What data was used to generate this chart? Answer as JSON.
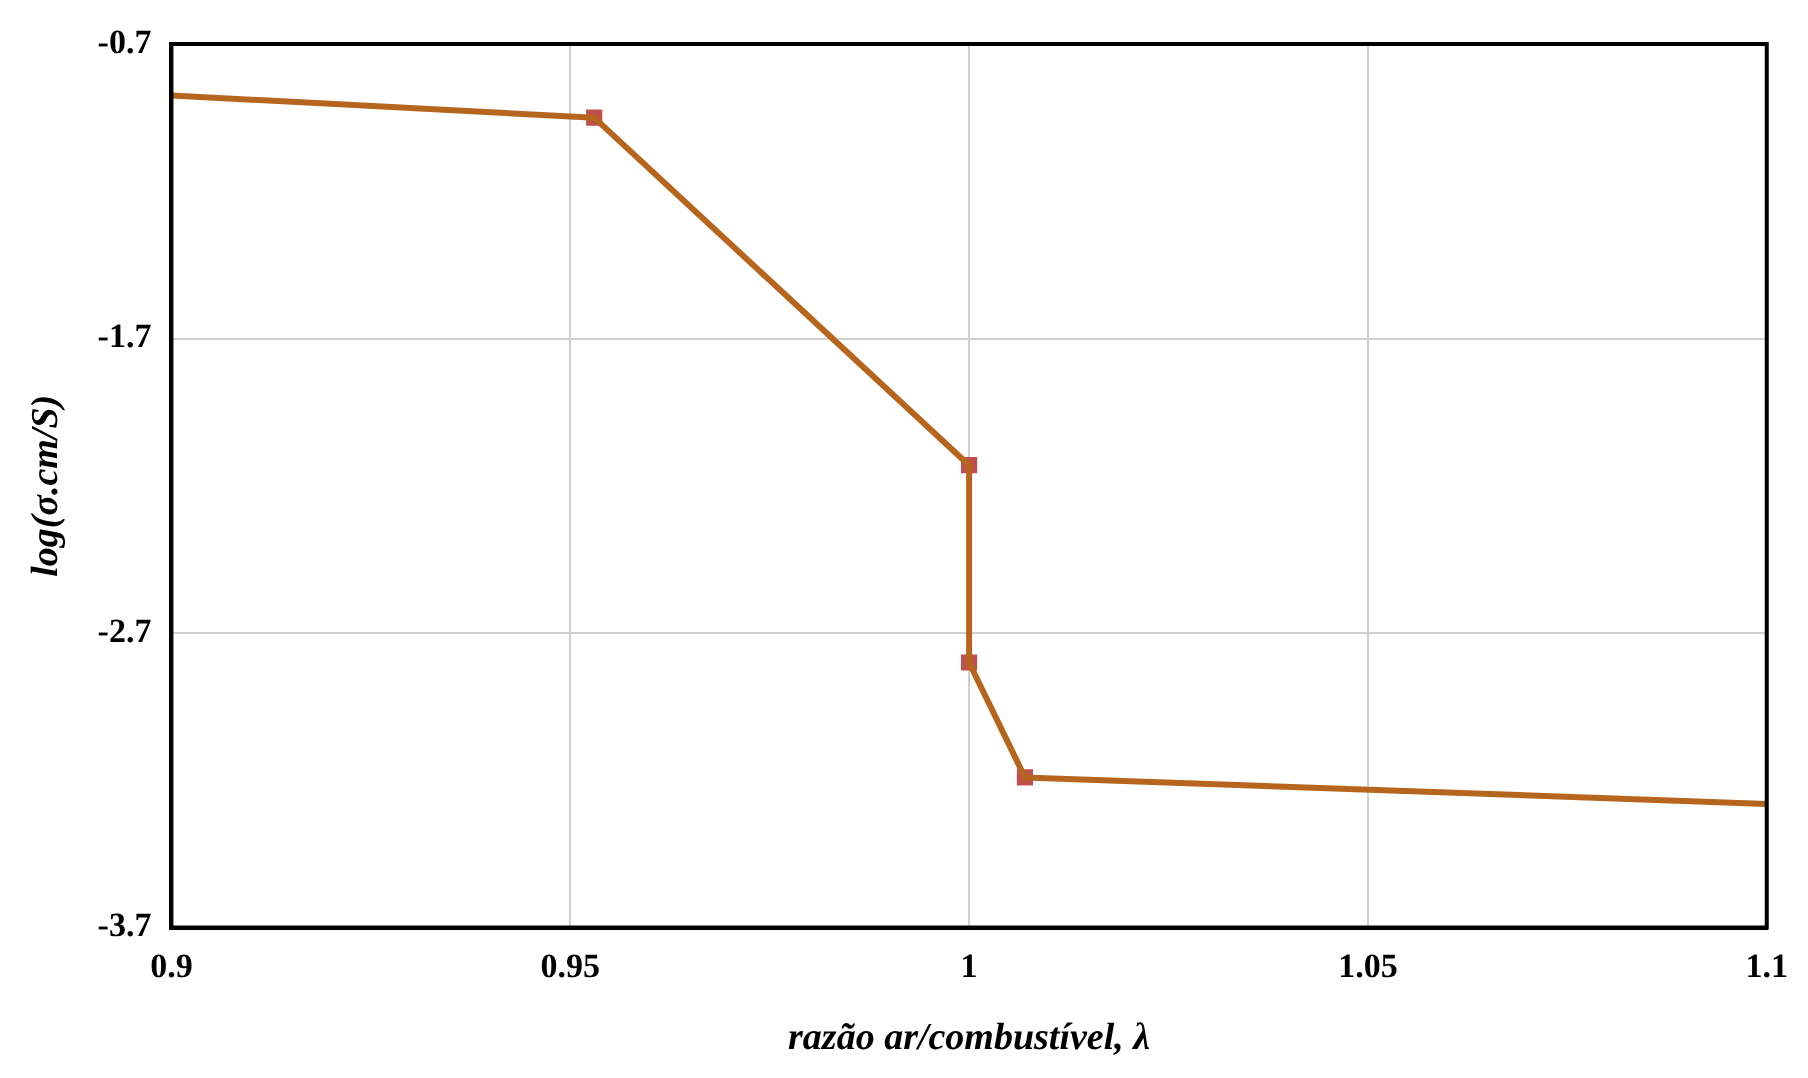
{
  "chart_data": {
    "type": "line",
    "xlabel": "razão ar/combustível, λ",
    "ylabel": "log(σ.cm/S)",
    "xlim": [
      0.9,
      1.1
    ],
    "xticks": [
      0.9,
      0.95,
      1,
      1.05,
      1.1
    ],
    "ylim": [
      -3.7,
      -0.7
    ],
    "yticks": [
      -3.7,
      -2.7,
      -1.7,
      -0.7
    ],
    "grid": true,
    "legend": false,
    "series": [
      {
        "type": "line",
        "color": "#b5651d",
        "marker": "none",
        "x": [
          0.9,
          0.953,
          1.0,
          1.0,
          1.007,
          1.1
        ],
        "values": [
          -0.875,
          -0.95,
          -2.13,
          -2.8,
          -3.19,
          -3.28
        ]
      },
      {
        "type": "scatter",
        "color": "#c0504d",
        "marker": "square",
        "x": [
          0.953,
          1.0,
          1.0,
          1.007
        ],
        "values": [
          -0.95,
          -2.13,
          -2.8,
          -3.19
        ]
      }
    ]
  }
}
